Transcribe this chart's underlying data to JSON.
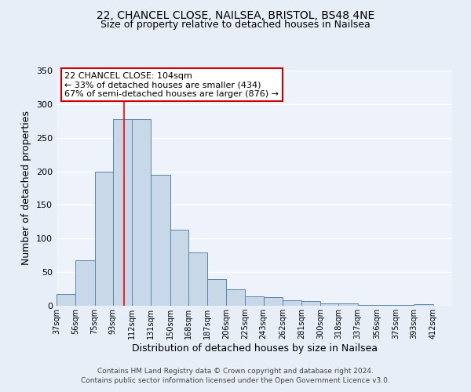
{
  "title_line1": "22, CHANCEL CLOSE, NAILSEA, BRISTOL, BS48 4NE",
  "title_line2": "Size of property relative to detached houses in Nailsea",
  "xlabel": "Distribution of detached houses by size in Nailsea",
  "ylabel": "Number of detached properties",
  "bar_left_edges": [
    37,
    56,
    75,
    93,
    112,
    131,
    150,
    168,
    187,
    206,
    225,
    243,
    262,
    281,
    300,
    318,
    337,
    356,
    375,
    393
  ],
  "bar_widths": [
    19,
    19,
    18,
    19,
    19,
    19,
    18,
    19,
    19,
    19,
    18,
    19,
    19,
    19,
    18,
    19,
    19,
    19,
    18,
    19
  ],
  "bar_heights": [
    18,
    68,
    200,
    278,
    278,
    195,
    113,
    79,
    40,
    25,
    14,
    13,
    8,
    7,
    3,
    4,
    1,
    1,
    1,
    2
  ],
  "bar_color": "#c8d8e8",
  "bar_edge_color": "#5588aa",
  "xlim_left": 37,
  "xlim_right": 431,
  "ylim_top": 350,
  "tick_labels": [
    "37sqm",
    "56sqm",
    "75sqm",
    "93sqm",
    "112sqm",
    "131sqm",
    "150sqm",
    "168sqm",
    "187sqm",
    "206sqm",
    "225sqm",
    "243sqm",
    "262sqm",
    "281sqm",
    "300sqm",
    "318sqm",
    "337sqm",
    "356sqm",
    "375sqm",
    "393sqm",
    "412sqm"
  ],
  "tick_positions": [
    37,
    56,
    75,
    93,
    112,
    131,
    150,
    168,
    187,
    206,
    225,
    243,
    262,
    281,
    300,
    318,
    337,
    356,
    375,
    393,
    412
  ],
  "red_line_x": 104,
  "annotation_title": "22 CHANCEL CLOSE: 104sqm",
  "annotation_line1": "← 33% of detached houses are smaller (434)",
  "annotation_line2": "67% of semi-detached houses are larger (876) →",
  "annotation_box_color": "#ffffff",
  "annotation_box_edge": "#cc0000",
  "footer_line1": "Contains HM Land Registry data © Crown copyright and database right 2024.",
  "footer_line2": "Contains public sector information licensed under the Open Government Licence v3.0.",
  "background_color": "#e8eef8",
  "plot_background_color": "#eef2fa",
  "grid_color": "#ffffff",
  "yticks": [
    0,
    50,
    100,
    150,
    200,
    250,
    300,
    350
  ]
}
